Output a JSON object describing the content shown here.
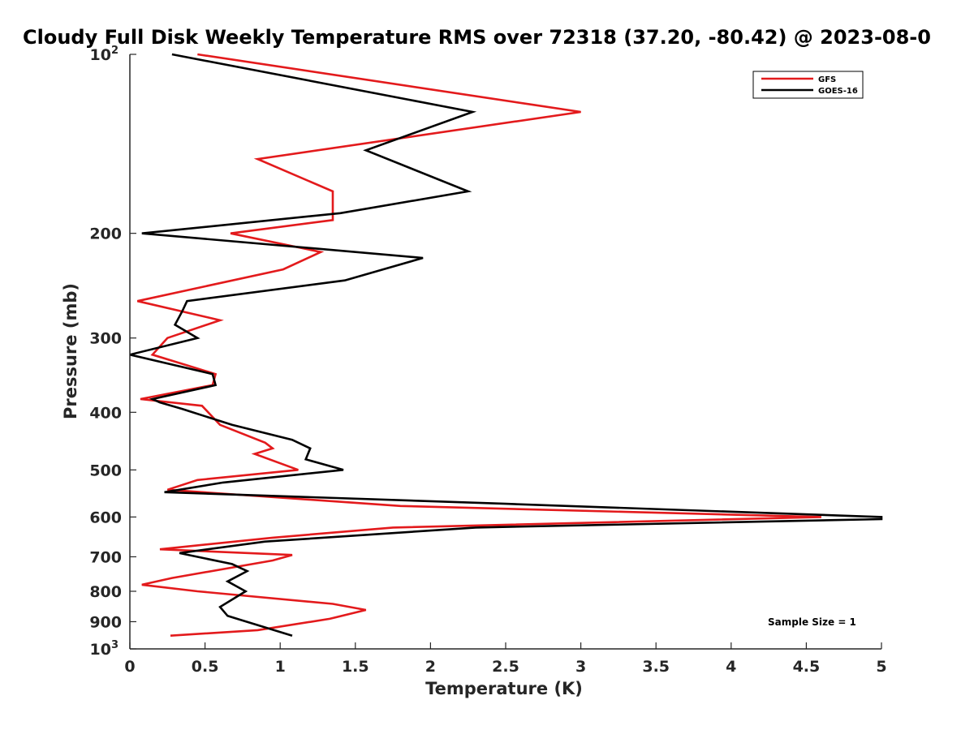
{
  "chart_data": {
    "type": "line",
    "title": "Cloudy Full Disk Weekly Temperature RMS over 72318 (37.20, -80.42) @ 2023-08-0",
    "xlabel": "Temperature (K)",
    "ylabel": "Pressure (mb)",
    "xlim": [
      0,
      5
    ],
    "ylim": [
      100,
      1000
    ],
    "yscale": "log",
    "y_reversed": true,
    "x_ticks": [
      "0",
      "0.5",
      "1",
      "1.5",
      "2",
      "2.5",
      "3",
      "3.5",
      "4",
      "4.5",
      "5"
    ],
    "y_ticks": [
      {
        "value": 100,
        "base": "10",
        "exp": "2"
      },
      {
        "value": 200,
        "label": "200"
      },
      {
        "value": 300,
        "label": "300"
      },
      {
        "value": 400,
        "label": "400"
      },
      {
        "value": 500,
        "label": "500"
      },
      {
        "value": 600,
        "label": "600"
      },
      {
        "value": 700,
        "label": "700"
      },
      {
        "value": 800,
        "label": "800"
      },
      {
        "value": 900,
        "label": "900"
      },
      {
        "value": 1000,
        "base": "10",
        "exp": "3"
      }
    ],
    "legend_position": "top-right",
    "annotation": "Sample Size = 1",
    "series": [
      {
        "name": "GFS",
        "color": "#e31a1c",
        "points": [
          [
            0.45,
            100
          ],
          [
            3.0,
            125
          ],
          [
            0.85,
            150
          ],
          [
            1.35,
            170
          ],
          [
            1.35,
            190
          ],
          [
            0.67,
            200
          ],
          [
            1.27,
            215
          ],
          [
            1.02,
            230
          ],
          [
            0.05,
            260
          ],
          [
            0.6,
            280
          ],
          [
            0.25,
            300
          ],
          [
            0.15,
            320
          ],
          [
            0.57,
            345
          ],
          [
            0.55,
            360
          ],
          [
            0.07,
            380
          ],
          [
            0.48,
            390
          ],
          [
            0.6,
            420
          ],
          [
            0.9,
            450
          ],
          [
            0.95,
            460
          ],
          [
            0.83,
            470
          ],
          [
            1.12,
            500
          ],
          [
            0.45,
            520
          ],
          [
            0.25,
            540
          ],
          [
            1.8,
            575
          ],
          [
            4.6,
            600
          ],
          [
            1.75,
            625
          ],
          [
            0.95,
            650
          ],
          [
            0.2,
            680
          ],
          [
            1.08,
            695
          ],
          [
            0.95,
            710
          ],
          [
            0.28,
            760
          ],
          [
            0.08,
            780
          ],
          [
            0.45,
            800
          ],
          [
            1.35,
            840
          ],
          [
            1.57,
            860
          ],
          [
            1.33,
            890
          ],
          [
            0.85,
            930
          ],
          [
            0.27,
            950
          ]
        ]
      },
      {
        "name": "GOES-16",
        "color": "#000000",
        "points": [
          [
            0.28,
            100
          ],
          [
            2.28,
            125
          ],
          [
            1.57,
            145
          ],
          [
            2.25,
            170
          ],
          [
            1.4,
            185
          ],
          [
            0.08,
            200
          ],
          [
            1.95,
            220
          ],
          [
            1.43,
            240
          ],
          [
            0.38,
            260
          ],
          [
            0.35,
            270
          ],
          [
            0.3,
            285
          ],
          [
            0.45,
            300
          ],
          [
            0.0,
            320
          ],
          [
            0.55,
            345
          ],
          [
            0.57,
            360
          ],
          [
            0.15,
            380
          ],
          [
            0.2,
            385
          ],
          [
            0.35,
            395
          ],
          [
            0.68,
            420
          ],
          [
            1.08,
            445
          ],
          [
            1.2,
            460
          ],
          [
            1.17,
            480
          ],
          [
            1.42,
            500
          ],
          [
            0.62,
            525
          ],
          [
            0.23,
            545
          ],
          [
            2.5,
            570
          ],
          [
            5.0,
            600
          ],
          [
            5.0,
            605
          ],
          [
            2.3,
            625
          ],
          [
            0.9,
            660
          ],
          [
            0.33,
            690
          ],
          [
            0.68,
            720
          ],
          [
            0.78,
            740
          ],
          [
            0.65,
            770
          ],
          [
            0.77,
            800
          ],
          [
            0.6,
            850
          ],
          [
            0.65,
            880
          ],
          [
            1.08,
            950
          ]
        ]
      }
    ]
  }
}
